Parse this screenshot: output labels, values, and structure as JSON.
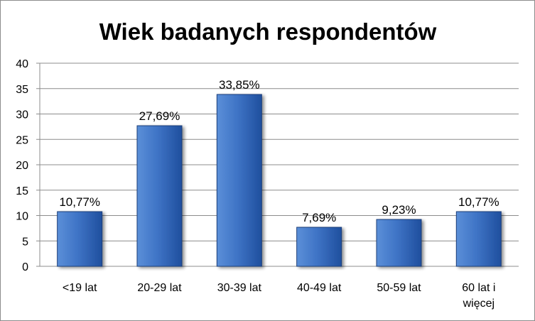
{
  "chart_data": {
    "type": "bar",
    "title": "Wiek badanych respondentów",
    "categories": [
      [
        "<19 lat"
      ],
      [
        "20-29 lat"
      ],
      [
        "30-39 lat"
      ],
      [
        "40-49 lat"
      ],
      [
        "50-59 lat"
      ],
      [
        "60 lat i",
        "więcej"
      ]
    ],
    "values": [
      10.77,
      27.69,
      33.85,
      7.69,
      9.23,
      10.77
    ],
    "data_labels": [
      "10,77%",
      "27,69%",
      "33,85%",
      "7,69%",
      "9,23%",
      "10,77%"
    ],
    "yticks": [
      "0",
      "5",
      "10",
      "15",
      "20",
      "25",
      "30",
      "35",
      "40"
    ],
    "ylim": [
      0,
      40
    ],
    "xlabel": "",
    "ylabel": "",
    "grid": true,
    "legend": "none",
    "colors": {
      "bar_light": "#5b8fd8",
      "bar_mid": "#3f74c6",
      "bar_dark": "#1f4f9e",
      "bar_edge": "#1b3f7a",
      "grid": "#8c8c8c"
    }
  }
}
